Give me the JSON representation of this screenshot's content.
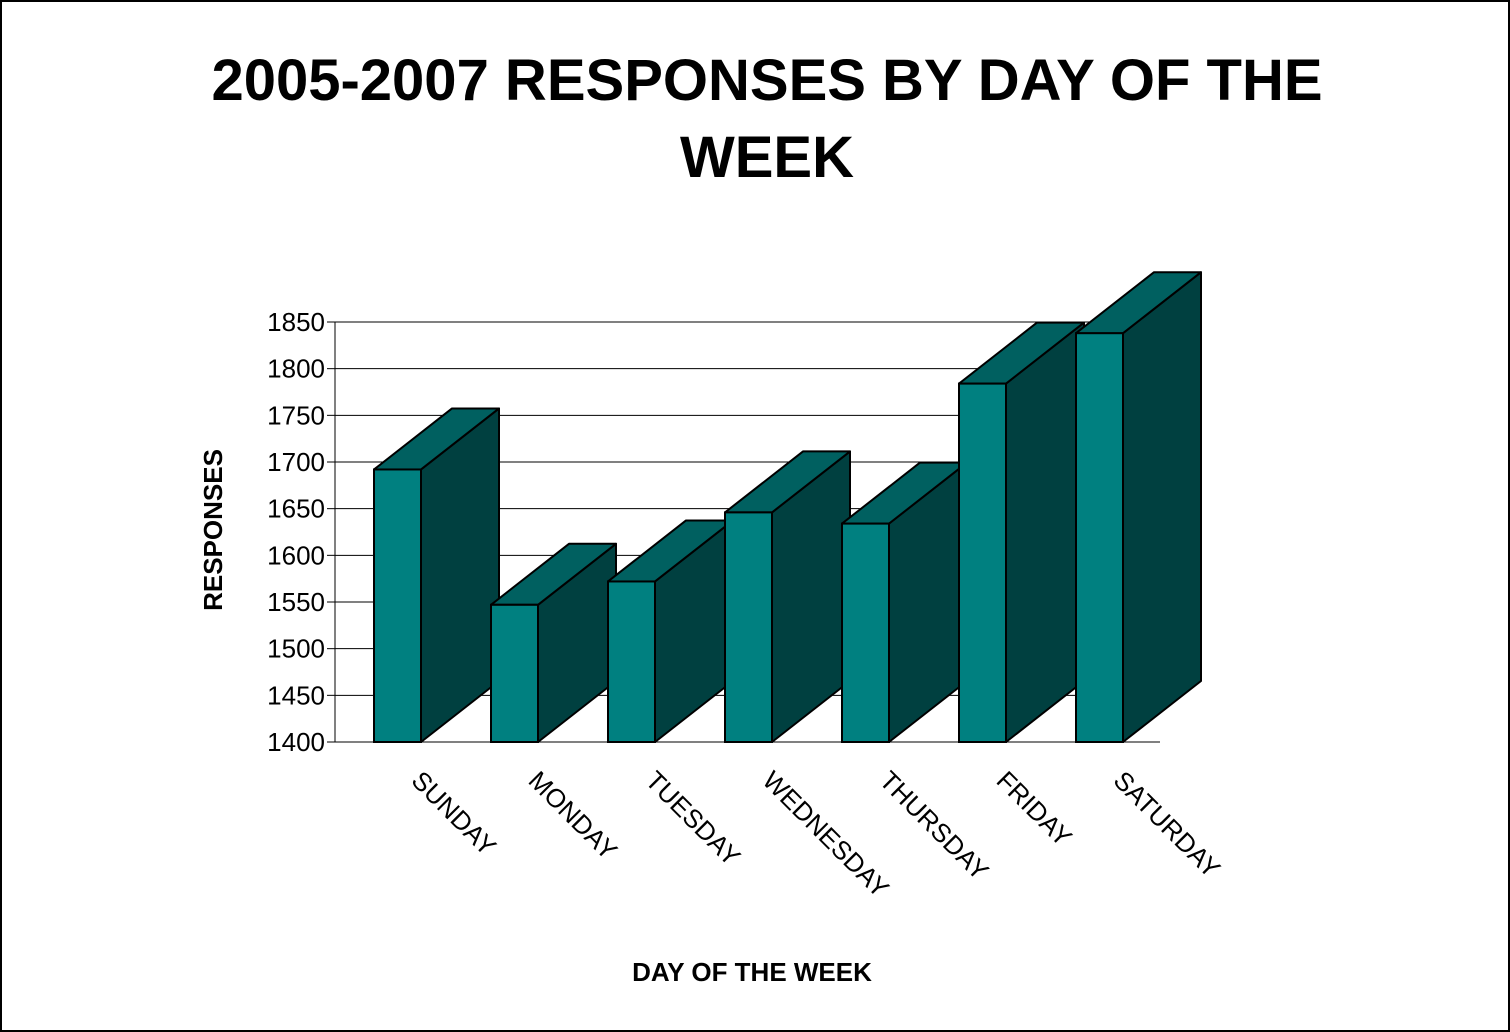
{
  "chart_data": {
    "type": "bar",
    "title_lines": [
      "2005-2007 RESPONSES BY DAY OF THE",
      "WEEK"
    ],
    "xlabel": "DAY OF THE WEEK",
    "ylabel": "RESPONSES",
    "categories": [
      "SUNDAY",
      "MONDAY",
      "TUESDAY",
      "WEDNESDAY",
      "THURSDAY",
      "FRIDAY",
      "SATURDAY"
    ],
    "values": [
      1692,
      1547,
      1572,
      1646,
      1634,
      1784,
      1838
    ],
    "ylim": [
      1400,
      1850
    ],
    "yticks": [
      1400,
      1450,
      1500,
      1550,
      1600,
      1650,
      1700,
      1750,
      1800,
      1850
    ],
    "grid": true,
    "style_3d": true,
    "colors": {
      "bar_front": "#008080",
      "bar_top": "#006060",
      "bar_side": "#004040",
      "gridline": "#000000",
      "edge": "#000000"
    }
  }
}
